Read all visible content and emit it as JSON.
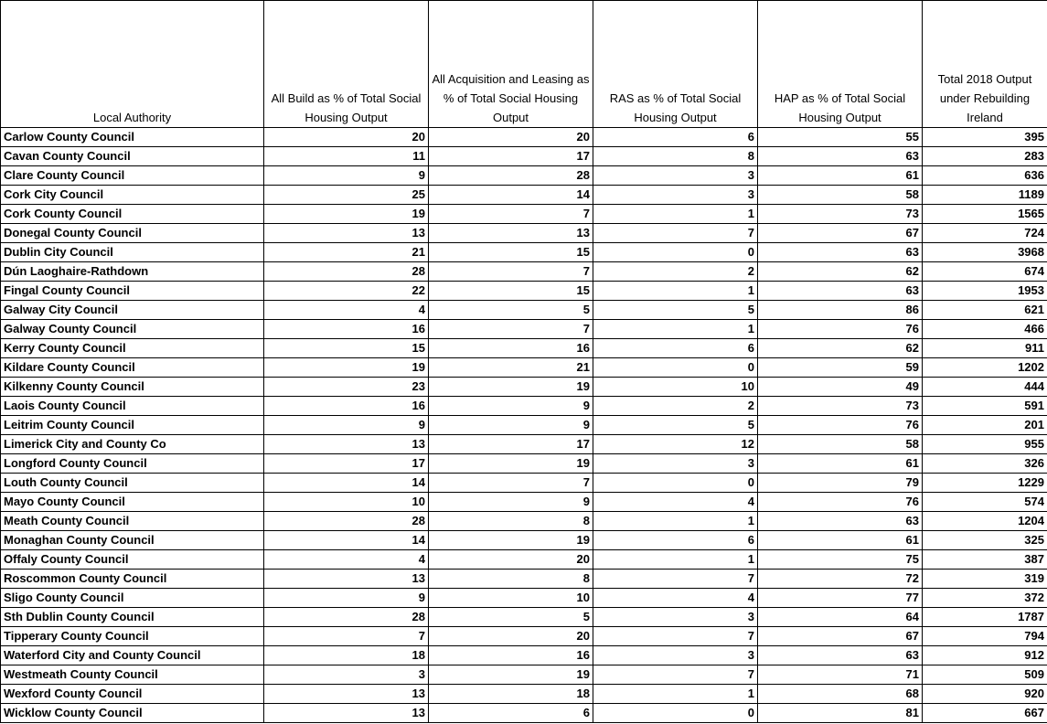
{
  "table": {
    "columns": [
      "Local Authority",
      "All Build as % of Total Social Housing Output",
      "All Acquisition and Leasing as % of Total Social Housing Output",
      "RAS as % of Total Social Housing Output",
      "HAP as % of Total Social Housing Output",
      "Total 2018 Output under Rebuilding Ireland"
    ],
    "rows": [
      [
        "Carlow County Council",
        20,
        20,
        6,
        55,
        395
      ],
      [
        "Cavan County Council",
        11,
        17,
        8,
        63,
        283
      ],
      [
        "Clare County Council",
        9,
        28,
        3,
        61,
        636
      ],
      [
        "Cork City Council",
        25,
        14,
        3,
        58,
        1189
      ],
      [
        "Cork County Council",
        19,
        7,
        1,
        73,
        1565
      ],
      [
        "Donegal County Council",
        13,
        13,
        7,
        67,
        724
      ],
      [
        "Dublin City Council",
        21,
        15,
        0,
        63,
        3968
      ],
      [
        "Dún Laoghaire-Rathdown",
        28,
        7,
        2,
        62,
        674
      ],
      [
        "Fingal County Council",
        22,
        15,
        1,
        63,
        1953
      ],
      [
        "Galway City Council",
        4,
        5,
        5,
        86,
        621
      ],
      [
        "Galway County Council",
        16,
        7,
        1,
        76,
        466
      ],
      [
        "Kerry County Council",
        15,
        16,
        6,
        62,
        911
      ],
      [
        "Kildare County Council",
        19,
        21,
        0,
        59,
        1202
      ],
      [
        "Kilkenny County Council",
        23,
        19,
        10,
        49,
        444
      ],
      [
        "Laois County Council",
        16,
        9,
        2,
        73,
        591
      ],
      [
        "Leitrim County Council",
        9,
        9,
        5,
        76,
        201
      ],
      [
        "Limerick City and County Co",
        13,
        17,
        12,
        58,
        955
      ],
      [
        "Longford County Council",
        17,
        19,
        3,
        61,
        326
      ],
      [
        "Louth County Council",
        14,
        7,
        0,
        79,
        1229
      ],
      [
        "Mayo County Council",
        10,
        9,
        4,
        76,
        574
      ],
      [
        "Meath County Council",
        28,
        8,
        1,
        63,
        1204
      ],
      [
        "Monaghan County Council",
        14,
        19,
        6,
        61,
        325
      ],
      [
        "Offaly County Council",
        4,
        20,
        1,
        75,
        387
      ],
      [
        "Roscommon County Council",
        13,
        8,
        7,
        72,
        319
      ],
      [
        "Sligo County Council",
        9,
        10,
        4,
        77,
        372
      ],
      [
        "Sth Dublin County Council",
        28,
        5,
        3,
        64,
        1787
      ],
      [
        "Tipperary County Council",
        7,
        20,
        7,
        67,
        794
      ],
      [
        "Waterford City and County Council",
        18,
        16,
        3,
        63,
        912
      ],
      [
        "Westmeath County Council",
        3,
        19,
        7,
        71,
        509
      ],
      [
        "Wexford County Council",
        13,
        18,
        1,
        68,
        920
      ],
      [
        "Wicklow County Council",
        13,
        6,
        0,
        81,
        667
      ]
    ]
  }
}
